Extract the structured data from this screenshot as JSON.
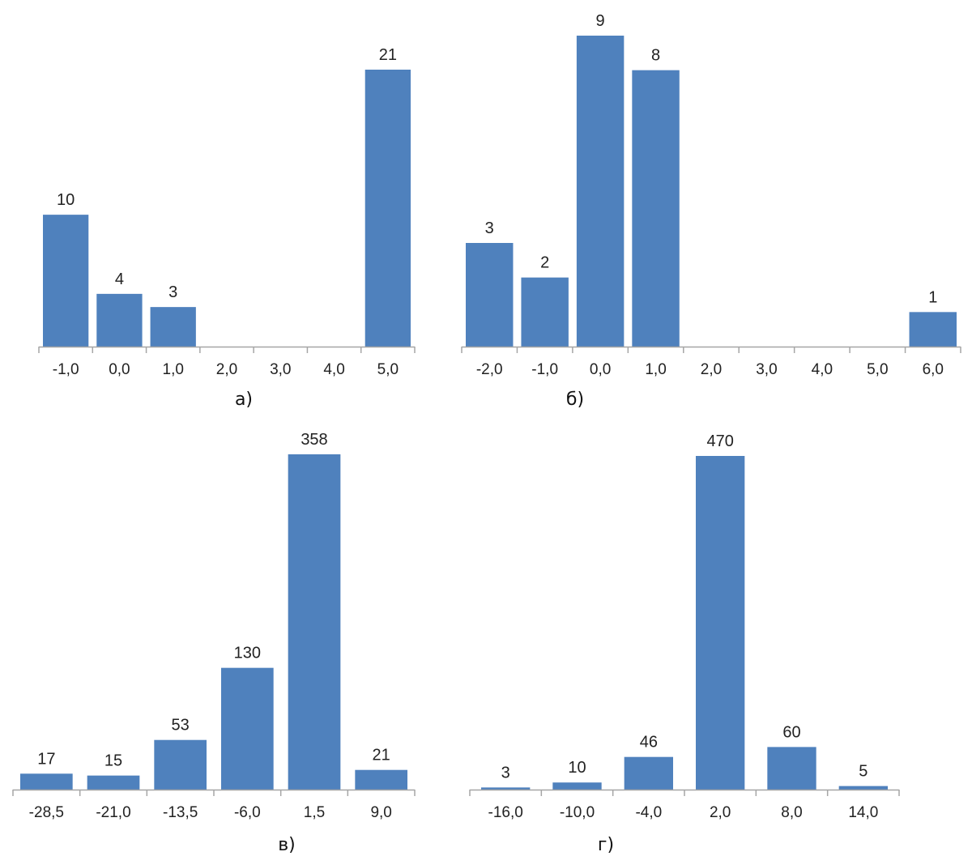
{
  "chart_data": [
    {
      "type": "bar",
      "caption": "а)",
      "categories": [
        "-1,0",
        "0,0",
        "1,0",
        "2,0",
        "3,0",
        "4,0",
        "5,0"
      ],
      "values": [
        10,
        4,
        3,
        0,
        0,
        0,
        21
      ],
      "value_labels": [
        "10",
        "4",
        "3",
        "",
        "",
        "",
        "21"
      ],
      "ylim": [
        0,
        21
      ],
      "grid": false,
      "bar_color": "#4F81BD"
    },
    {
      "type": "bar",
      "caption": "б)",
      "categories": [
        "-2,0",
        "-1,0",
        "0,0",
        "1,0",
        "2,0",
        "3,0",
        "4,0",
        "5,0",
        "6,0"
      ],
      "values": [
        3,
        2,
        9,
        8,
        0,
        0,
        0,
        0,
        1
      ],
      "value_labels": [
        "3",
        "2",
        "9",
        "8",
        "",
        "",
        "",
        "",
        "1"
      ],
      "ylim": [
        0,
        9
      ],
      "grid": false,
      "bar_color": "#4F81BD"
    },
    {
      "type": "bar",
      "caption": "в)",
      "categories": [
        "-28,5",
        "-21,0",
        "-13,5",
        "-6,0",
        "1,5",
        "9,0"
      ],
      "values": [
        17,
        15,
        53,
        130,
        358,
        21
      ],
      "value_labels": [
        "17",
        "15",
        "53",
        "130",
        "358",
        "21"
      ],
      "ylim": [
        0,
        358
      ],
      "grid": false,
      "bar_color": "#4F81BD"
    },
    {
      "type": "bar",
      "caption": "г)",
      "categories": [
        "-16,0",
        "-10,0",
        "-4,0",
        "2,0",
        "8,0",
        "14,0"
      ],
      "values": [
        3,
        10,
        46,
        470,
        60,
        5
      ],
      "value_labels": [
        "3",
        "10",
        "46",
        "470",
        "60",
        "5"
      ],
      "ylim": [
        0,
        470
      ],
      "grid": false,
      "bar_color": "#4F81BD"
    }
  ]
}
